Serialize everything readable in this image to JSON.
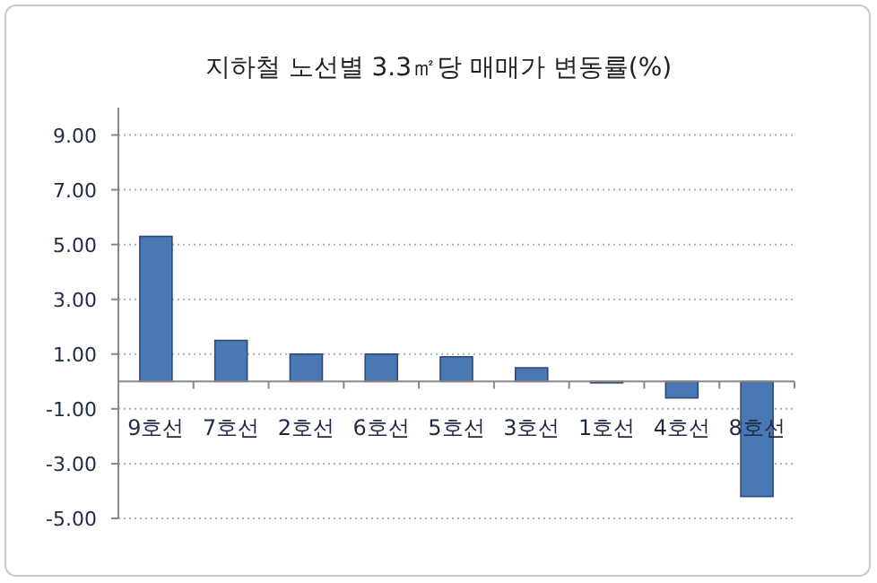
{
  "chart_data": {
    "type": "bar",
    "title": "지하철 노선별 3.3㎡당 매매가 변동률(%)",
    "categories": [
      "9호선",
      "7호선",
      "2호선",
      "6호선",
      "5호선",
      "3호선",
      "1호선",
      "4호선",
      "8호선"
    ],
    "values": [
      5.3,
      1.5,
      1.0,
      1.0,
      0.9,
      0.5,
      -0.05,
      -0.6,
      -4.2
    ],
    "color": "#4a78b4",
    "ylim": [
      -5,
      10
    ],
    "yticks": [
      {
        "value": 9,
        "label": "9.00"
      },
      {
        "value": 7,
        "label": "7.00"
      },
      {
        "value": 5,
        "label": "5.00"
      },
      {
        "value": 3,
        "label": "3.00"
      },
      {
        "value": 1,
        "label": "1.00"
      },
      {
        "value": -1,
        "label": "-1.00"
      },
      {
        "value": -3,
        "label": "-3.00"
      },
      {
        "value": -5,
        "label": "-5.00"
      }
    ],
    "grid": "y"
  }
}
